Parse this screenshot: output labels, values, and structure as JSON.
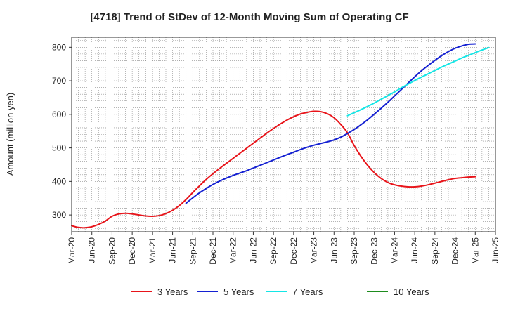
{
  "chart_data": {
    "type": "line",
    "title": "[4718]  Trend of StDev of 12-Month Moving Sum of Operating CF",
    "ylabel": "Amount (million yen)",
    "xlabel": "",
    "ylim": [
      250,
      830
    ],
    "yticks": [
      300,
      400,
      500,
      600,
      700,
      800
    ],
    "xtick_labels": [
      "Mar-20",
      "Jun-20",
      "Sep-20",
      "Dec-20",
      "Mar-21",
      "Jun-21",
      "Sep-21",
      "Dec-21",
      "Mar-22",
      "Jun-22",
      "Sep-22",
      "Dec-22",
      "Mar-23",
      "Jun-23",
      "Sep-23",
      "Dec-23",
      "Mar-24",
      "Jun-24",
      "Sep-24",
      "Dec-24",
      "Mar-25",
      "Jun-25"
    ],
    "grid": true,
    "legend_position": "bottom",
    "series": [
      {
        "name": "3 Years",
        "color": "#e8141a",
        "points": [
          [
            "Mar-20",
            268
          ],
          [
            "Apr-20",
            263
          ],
          [
            "May-20",
            262
          ],
          [
            "Jun-20",
            265
          ],
          [
            "Jul-20",
            272
          ],
          [
            "Aug-20",
            282
          ],
          [
            "Sep-20",
            296
          ],
          [
            "Oct-20",
            303
          ],
          [
            "Nov-20",
            305
          ],
          [
            "Dec-20",
            303
          ],
          [
            "Jan-21",
            300
          ],
          [
            "Feb-21",
            297
          ],
          [
            "Mar-21",
            296
          ],
          [
            "Apr-21",
            298
          ],
          [
            "May-21",
            304
          ],
          [
            "Jun-21",
            314
          ],
          [
            "Jul-21",
            328
          ],
          [
            "Aug-21",
            346
          ],
          [
            "Sep-21",
            367
          ],
          [
            "Oct-21",
            387
          ],
          [
            "Nov-21",
            406
          ],
          [
            "Dec-21",
            423
          ],
          [
            "Jan-22",
            439
          ],
          [
            "Feb-22",
            454
          ],
          [
            "Mar-22",
            469
          ],
          [
            "Apr-22",
            484
          ],
          [
            "May-22",
            499
          ],
          [
            "Jun-22",
            514
          ],
          [
            "Jul-22",
            529
          ],
          [
            "Aug-22",
            544
          ],
          [
            "Sep-22",
            558
          ],
          [
            "Oct-22",
            571
          ],
          [
            "Nov-22",
            583
          ],
          [
            "Dec-22",
            593
          ],
          [
            "Jan-23",
            601
          ],
          [
            "Feb-23",
            606
          ],
          [
            "Mar-23",
            609
          ],
          [
            "Apr-23",
            608
          ],
          [
            "May-23",
            602
          ],
          [
            "Jun-23",
            590
          ],
          [
            "Jul-23",
            570
          ],
          [
            "Aug-23",
            545
          ],
          [
            "Sep-23",
            507
          ],
          [
            "Oct-23",
            475
          ],
          [
            "Nov-23",
            448
          ],
          [
            "Dec-23",
            426
          ],
          [
            "Jan-24",
            409
          ],
          [
            "Feb-24",
            397
          ],
          [
            "Mar-24",
            390
          ],
          [
            "Apr-24",
            386
          ],
          [
            "May-24",
            384
          ],
          [
            "Jun-24",
            384
          ],
          [
            "Jul-24",
            386
          ],
          [
            "Aug-24",
            390
          ],
          [
            "Sep-24",
            395
          ],
          [
            "Oct-24",
            400
          ],
          [
            "Nov-24",
            405
          ],
          [
            "Dec-24",
            409
          ],
          [
            "Jan-25",
            411
          ],
          [
            "Feb-25",
            413
          ],
          [
            "Mar-25",
            414
          ]
        ]
      },
      {
        "name": "5 Years",
        "color": "#1420d2",
        "points": [
          [
            "Aug-21",
            335
          ],
          [
            "Sep-21",
            351
          ],
          [
            "Oct-21",
            366
          ],
          [
            "Nov-21",
            379
          ],
          [
            "Dec-21",
            391
          ],
          [
            "Jan-22",
            401
          ],
          [
            "Feb-22",
            410
          ],
          [
            "Mar-22",
            418
          ],
          [
            "Apr-22",
            425
          ],
          [
            "May-22",
            432
          ],
          [
            "Jun-22",
            440
          ],
          [
            "Jul-22",
            448
          ],
          [
            "Aug-22",
            456
          ],
          [
            "Sep-22",
            464
          ],
          [
            "Oct-22",
            472
          ],
          [
            "Nov-22",
            480
          ],
          [
            "Dec-22",
            487
          ],
          [
            "Jan-23",
            495
          ],
          [
            "Feb-23",
            502
          ],
          [
            "Mar-23",
            508
          ],
          [
            "Apr-23",
            513
          ],
          [
            "May-23",
            518
          ],
          [
            "Jun-23",
            524
          ],
          [
            "Jul-23",
            532
          ],
          [
            "Aug-23",
            543
          ],
          [
            "Sep-23",
            555
          ],
          [
            "Oct-23",
            569
          ],
          [
            "Nov-23",
            584
          ],
          [
            "Dec-23",
            601
          ],
          [
            "Jan-24",
            618
          ],
          [
            "Feb-24",
            636
          ],
          [
            "Mar-24",
            655
          ],
          [
            "Apr-24",
            674
          ],
          [
            "May-24",
            693
          ],
          [
            "Jun-24",
            712
          ],
          [
            "Jul-24",
            730
          ],
          [
            "Aug-24",
            746
          ],
          [
            "Sep-24",
            761
          ],
          [
            "Oct-24",
            775
          ],
          [
            "Nov-24",
            787
          ],
          [
            "Dec-24",
            797
          ],
          [
            "Jan-25",
            804
          ],
          [
            "Feb-25",
            809
          ],
          [
            "Mar-25",
            810
          ]
        ]
      },
      {
        "name": "7 Years",
        "color": "#14e6e6",
        "points": [
          [
            "Aug-23",
            596
          ],
          [
            "Sep-23",
            605
          ],
          [
            "Oct-23",
            614
          ],
          [
            "Nov-23",
            624
          ],
          [
            "Dec-23",
            634
          ],
          [
            "Jan-24",
            645
          ],
          [
            "Feb-24",
            656
          ],
          [
            "Mar-24",
            667
          ],
          [
            "Apr-24",
            679
          ],
          [
            "May-24",
            690
          ],
          [
            "Jun-24",
            701
          ],
          [
            "Jul-24",
            711
          ],
          [
            "Aug-24",
            721
          ],
          [
            "Sep-24",
            731
          ],
          [
            "Oct-24",
            741
          ],
          [
            "Nov-24",
            750
          ],
          [
            "Dec-24",
            759
          ],
          [
            "Jan-25",
            768
          ],
          [
            "Feb-25",
            776
          ],
          [
            "Mar-25",
            784
          ],
          [
            "Apr-25",
            792
          ],
          [
            "May-25",
            799
          ]
        ]
      },
      {
        "name": "10 Years",
        "color": "#1e8c1e",
        "points": []
      }
    ]
  }
}
